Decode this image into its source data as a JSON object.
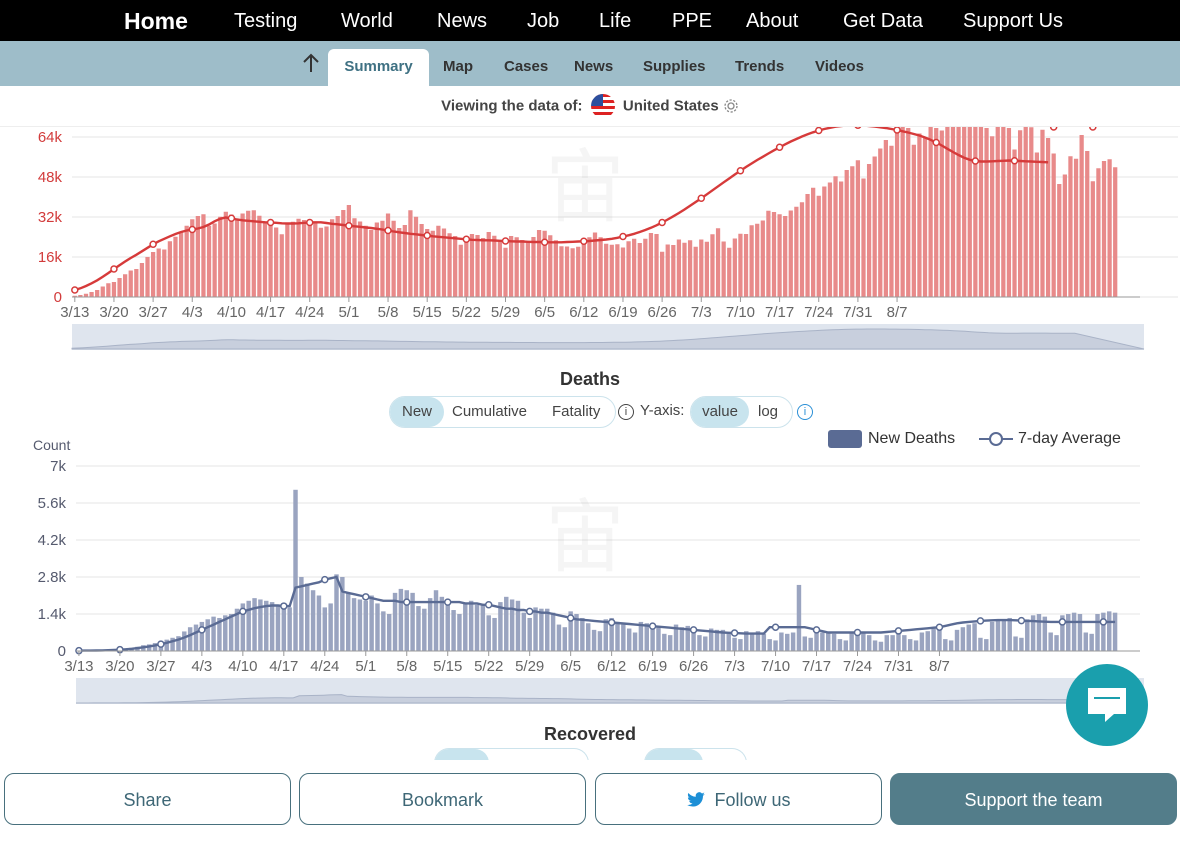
{
  "nav": {
    "home": "Home",
    "items": [
      "Testing",
      "World",
      "News",
      "Job",
      "Life",
      "PPE",
      "About",
      "Get Data",
      "Support Us"
    ]
  },
  "subnav": {
    "tabs": [
      "Summary",
      "Map",
      "Cases",
      "News",
      "Supplies",
      "Trends",
      "Videos"
    ],
    "active": "Summary"
  },
  "viewing": {
    "label": "Viewing the data of:",
    "country": "United States"
  },
  "cases_chart": {
    "y_ticks": [
      "0",
      "16k",
      "32k",
      "48k",
      "64k"
    ],
    "x_ticks": [
      "3/13",
      "3/20",
      "3/27",
      "4/3",
      "4/10",
      "4/17",
      "4/24",
      "5/1",
      "5/8",
      "5/15",
      "5/22",
      "5/29",
      "6/5",
      "6/12",
      "6/19",
      "6/26",
      "7/3",
      "7/10",
      "7/17",
      "7/24",
      "7/31",
      "8/7"
    ],
    "bar_color": "#e88a8a",
    "line_color": "#d63a3a"
  },
  "deaths": {
    "title": "Deaths",
    "modes": [
      "New",
      "Cumulative",
      "Fatality"
    ],
    "active_mode": "New",
    "yaxis_label": "Y-axis:",
    "scales": [
      "value",
      "log"
    ],
    "active_scale": "value",
    "count_label": "Count",
    "legend_new": "New Deaths",
    "legend_avg": "7-day Average",
    "y_ticks": [
      "0",
      "1.4k",
      "2.8k",
      "4.2k",
      "5.6k",
      "7k"
    ],
    "x_ticks": [
      "3/13",
      "3/20",
      "3/27",
      "4/3",
      "4/10",
      "4/17",
      "4/24",
      "5/1",
      "5/8",
      "5/15",
      "5/22",
      "5/29",
      "6/5",
      "6/12",
      "6/19",
      "6/26",
      "7/3",
      "7/10",
      "7/17",
      "7/24",
      "7/31",
      "8/7"
    ],
    "bar_color": "#9aa4c0",
    "line_color": "#5a6b94"
  },
  "recovered": {
    "title": "Recovered"
  },
  "buttons": {
    "share": "Share",
    "bookmark": "Bookmark",
    "follow": "Follow us",
    "support": "Support the team"
  },
  "chart_data": [
    {
      "type": "bar",
      "title": "",
      "xlabel": "",
      "ylabel": "",
      "ylim": [
        0,
        72000
      ],
      "x_start": "3/13",
      "x_end": "8/12",
      "series": [
        {
          "values": [
            500,
            800,
            1300,
            2000,
            2800,
            4200,
            5500,
            6000,
            7600,
            9100,
            10600,
            11200,
            13600,
            16000,
            18000,
            19400,
            19000,
            22300,
            24100,
            26000,
            28500,
            31100,
            32400,
            33100,
            28500,
            29400,
            32100,
            34100,
            33000,
            31200,
            33400,
            34500,
            34700,
            32500,
            30300,
            28700,
            27800,
            25100,
            29600,
            30100,
            31300,
            30800,
            29500,
            29800,
            27700,
            28200,
            31100,
            32400,
            34800,
            36800,
            31500,
            30200,
            28500,
            26800,
            29800,
            30500,
            33400,
            30500,
            27600,
            28800,
            34700,
            32100,
            29200,
            27200,
            26500,
            28500,
            27400,
            25500,
            24400,
            20900,
            22300,
            25200,
            24800,
            23600,
            26000,
            24500,
            22300,
            19700,
            24400,
            23900,
            22800,
            22400,
            24000,
            26800,
            26500,
            24700,
            22700,
            20300,
            20200,
            19500,
            20100,
            22000,
            23900,
            25800,
            23900,
            21300,
            20900,
            21100,
            19800,
            22300,
            23300,
            21600,
            23300,
            25600,
            25200,
            18100,
            21000,
            20800,
            23000,
            21700,
            22700,
            20100,
            23000,
            22100,
            25100,
            27500,
            22200,
            19700,
            23400,
            25300,
            25200,
            28700,
            29300,
            30600,
            34500,
            34000,
            33100,
            32400,
            34600,
            36100,
            37900,
            41200,
            43700,
            40500,
            44200,
            45800,
            48300,
            46200,
            50800,
            52300,
            54700,
            47400,
            53200,
            56200,
            59400,
            62800,
            60500,
            69000,
            73800,
            67600,
            60900,
            65400,
            63700,
            69200,
            67600,
            66600,
            73000,
            70400,
            69100,
            70200,
            71400,
            73500,
            74500,
            67600,
            64300,
            72500,
            70800,
            67600,
            59000,
            66700,
            68600,
            67900,
            57800,
            66900,
            63600,
            57400,
            45200,
            49000,
            56300,
            55300,
            64800,
            58400,
            46300,
            51500,
            54400,
            55100,
            51900
          ],
          "name": ""
        },
        {
          "values": [
            2800,
            3500,
            4400,
            5500,
            6700,
            8100,
            9600,
            11200,
            12700,
            14200,
            15600,
            16900,
            18300,
            19700,
            21100,
            22300,
            23300,
            24300,
            25200,
            26000,
            26600,
            27000,
            27400,
            28000,
            29000,
            30300,
            31300,
            31800,
            31500,
            31000,
            30700,
            30500,
            30300,
            30100,
            29900,
            29800,
            29700,
            29500,
            29400,
            29400,
            29500,
            29700,
            29800,
            29900,
            29900,
            29600,
            29300,
            29100,
            28800,
            28500,
            28300,
            28100,
            27800,
            27600,
            27300,
            27000,
            26600,
            26200,
            25900,
            25600,
            25300,
            25100,
            24800,
            24600,
            24300,
            24100,
            23900,
            23700,
            23500,
            23300,
            23100,
            22900,
            22800,
            22700,
            22700,
            22600,
            22500,
            22400,
            22300,
            22200,
            22200,
            22100,
            22000,
            22000,
            21900,
            21900,
            21900,
            21900,
            22000,
            22100,
            22200,
            22300,
            22400,
            22600,
            22800,
            23000,
            23300,
            23700,
            24200,
            24700,
            25300,
            26000,
            26800,
            27700,
            28700,
            29800,
            31000,
            32300,
            33600,
            35000,
            36500,
            38000,
            39500,
            41100,
            42700,
            44300,
            45900,
            47400,
            49000,
            50500,
            52000,
            53400,
            54800,
            56100,
            57400,
            58700,
            59900,
            61100,
            62200,
            63200,
            64200,
            65100,
            65900,
            66600,
            67200,
            67700,
            68100,
            68400,
            68600,
            68700,
            68700,
            68600,
            68400,
            68200,
            67900,
            67600,
            67200,
            66800,
            66300,
            65800,
            65200,
            64600,
            63800,
            62900,
            61800,
            60600,
            59300,
            58000,
            56800,
            55700,
            54900,
            54400,
            54200,
            54200,
            54300,
            54400,
            54500,
            54600,
            54500,
            54400,
            54300,
            54200,
            54100,
            54000,
            53900
          ],
          "name": ""
        }
      ]
    },
    {
      "type": "bar",
      "title": "Deaths",
      "xlabel": "",
      "ylabel": "Count",
      "ylim": [
        0,
        7000
      ],
      "x_start": "3/13",
      "x_end": "8/12",
      "series": [
        {
          "name": "New Deaths",
          "values": [
            10,
            14,
            12,
            20,
            25,
            40,
            48,
            60,
            90,
            120,
            160,
            220,
            250,
            300,
            380,
            430,
            500,
            560,
            740,
            900,
            1000,
            1100,
            1200,
            1300,
            1250,
            1350,
            1400,
            1600,
            1800,
            1900,
            2000,
            1950,
            1900,
            1850,
            1700,
            1700,
            1650,
            6100,
            2800,
            2550,
            2300,
            2100,
            1650,
            1800,
            2900,
            2800,
            2200,
            2000,
            1950,
            1900,
            2100,
            1800,
            1500,
            1400,
            2200,
            2350,
            2300,
            2200,
            1700,
            1600,
            2000,
            2300,
            2050,
            1950,
            1550,
            1400,
            1800,
            1900,
            1750,
            1750,
            1350,
            1250,
            1850,
            2050,
            1950,
            1900,
            1450,
            1250,
            1650,
            1600,
            1600,
            1450,
            1000,
            900,
            1500,
            1400,
            1250,
            1050,
            800,
            750,
            1200,
            1250,
            1100,
            1000,
            850,
            700,
            1100,
            1050,
            1000,
            900,
            650,
            600,
            1000,
            900,
            950,
            850,
            600,
            550,
            850,
            800,
            800,
            700,
            500,
            450,
            750,
            700,
            750,
            650,
            450,
            400,
            700,
            650,
            700,
            2500,
            550,
            500,
            750,
            700,
            700,
            650,
            450,
            400,
            700,
            650,
            700,
            600,
            400,
            350,
            600,
            600,
            650,
            600,
            450,
            400,
            700,
            750,
            850,
            800,
            450,
            400,
            800,
            900,
            1000,
            1050,
            500,
            450,
            1100,
            1150,
            1200,
            1250,
            550,
            500,
            1200,
            1350,
            1400,
            1300,
            700,
            600,
            1350,
            1400,
            1450,
            1400,
            700,
            650,
            1400,
            1450,
            1500,
            1450
          ],
          "note_peak": "approximately 6.1k on about 4/14"
        },
        {
          "name": "7-day Average",
          "values": [
            12,
            14,
            16,
            20,
            24,
            30,
            38,
            50,
            65,
            85,
            110,
            140,
            175,
            210,
            260,
            310,
            370,
            430,
            510,
            600,
            700,
            800,
            900,
            1000,
            1100,
            1200,
            1300,
            1400,
            1500,
            1560,
            1620,
            1660,
            1700,
            1720,
            1720,
            1700,
            1700,
            2400,
            2450,
            2500,
            2550,
            2600,
            2700,
            2750,
            2800,
            2250,
            2200,
            2150,
            2100,
            2050,
            2000,
            1950,
            1900,
            1900,
            1900,
            1850,
            1850,
            1850,
            1850,
            1850,
            1850,
            1850,
            1850,
            1850,
            1850,
            1850,
            1800,
            1800,
            1800,
            1750,
            1750,
            1700,
            1650,
            1600,
            1600,
            1550,
            1550,
            1500,
            1500,
            1450,
            1450,
            1400,
            1350,
            1300,
            1250,
            1200,
            1180,
            1160,
            1140,
            1120,
            1100,
            1080,
            1060,
            1040,
            1020,
            1000,
            980,
            960,
            940,
            920,
            900,
            880,
            860,
            840,
            820,
            800,
            780,
            760,
            740,
            720,
            700,
            690,
            680,
            670,
            660,
            660,
            660,
            660,
            900,
            900,
            900,
            900,
            900,
            900,
            900,
            850,
            800,
            750,
            700,
            700,
            700,
            700,
            700,
            700,
            700,
            700,
            700,
            700,
            720,
            740,
            760,
            780,
            800,
            820,
            840,
            860,
            880,
            900,
            950,
            1000,
            1050,
            1080,
            1100,
            1120,
            1140,
            1150,
            1160,
            1170,
            1170,
            1170,
            1160,
            1150,
            1140,
            1130,
            1120,
            1110,
            1100,
            1100,
            1100,
            1100,
            1100,
            1100,
            1100,
            1100,
            1100,
            1100,
            1100,
            1100
          ]
        }
      ]
    }
  ]
}
